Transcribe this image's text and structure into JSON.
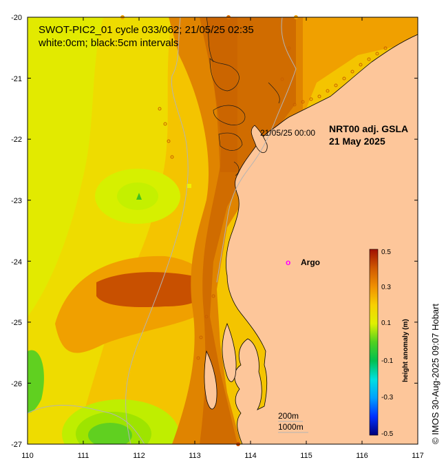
{
  "title": {
    "line1": "SWOT-PIC2_01 cycle 033/062; 21/05/25 02:35",
    "line2": "white:0cm; black:5cm intervals"
  },
  "product": {
    "line1": "NRT00 adj. GSLA",
    "line2": "21 May 2025"
  },
  "track_time_label": "21/05/25 00:00",
  "argo": {
    "symbol": "o",
    "label": "Argo",
    "color": "#ff00ff",
    "lon": 114.65,
    "lat": -24.05
  },
  "isobaths": {
    "label_200": "200m",
    "label_1000": "1000m"
  },
  "credit": "© IMOS 30-Aug-2025 09:07 Hobart",
  "axes": {
    "lon_ticks": [
      "110",
      "111",
      "112",
      "113",
      "114",
      "115",
      "116",
      "117"
    ],
    "lat_ticks": [
      "-20",
      "-21",
      "-22",
      "-23",
      "-24",
      "-25",
      "-26",
      "-27"
    ],
    "lon_range": [
      110,
      117
    ],
    "lat_range": [
      -27,
      -20
    ]
  },
  "colorbar": {
    "title": "height anomaly (m)",
    "ticks": [
      "0.5",
      "0.3",
      "0.1",
      "-0.1",
      "-0.3",
      "-0.5"
    ],
    "range": [
      -0.5,
      0.5
    ]
  },
  "colors": {
    "land": "#fdc69a",
    "coast": "#000000",
    "isobath": "#b4b4b4",
    "colorbar_stops": [
      "#00007a",
      "#0030ff",
      "#00c8ff",
      "#00c050",
      "#40d020",
      "#c8f000",
      "#f0f000",
      "#f8c800",
      "#f0a000",
      "#e07000",
      "#c84800",
      "#a01000"
    ]
  }
}
